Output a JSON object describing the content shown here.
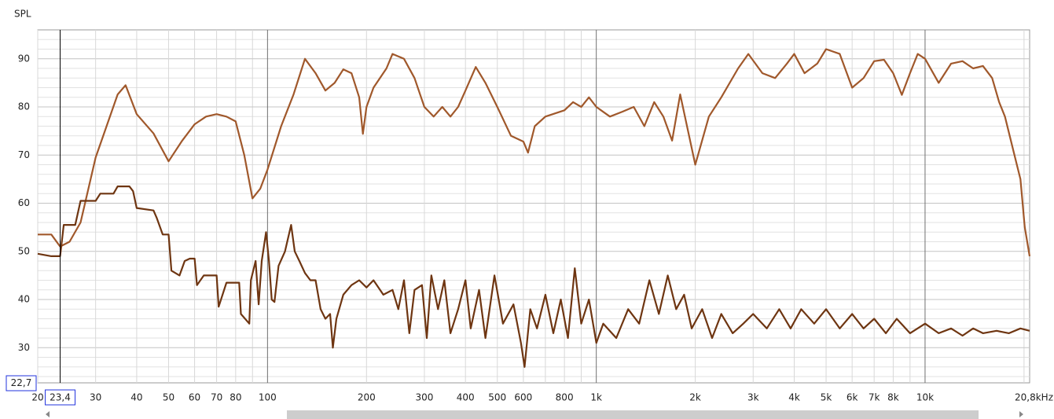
{
  "chart_data": {
    "type": "line",
    "y_axis_label": "SPL",
    "xscale": "log",
    "xlim": [
      20,
      20800
    ],
    "ylim": [
      22.7,
      96
    ],
    "xticks": [
      20,
      30,
      40,
      50,
      60,
      70,
      80,
      100,
      200,
      300,
      400,
      500,
      600,
      800,
      {
        "value": 1000,
        "label": "1k"
      },
      {
        "value": 2000,
        "label": "2k"
      },
      {
        "value": 3000,
        "label": "3k"
      },
      {
        "value": 4000,
        "label": "4k"
      },
      {
        "value": 5000,
        "label": "5k"
      },
      {
        "value": 6000,
        "label": "6k"
      },
      {
        "value": 7000,
        "label": "7k"
      },
      {
        "value": 8000,
        "label": "8k"
      },
      {
        "value": 10000,
        "label": "10k"
      },
      {
        "value": 20800,
        "label": "20,8kHz"
      }
    ],
    "xminorticks": [
      90,
      700,
      900,
      9000,
      20000
    ],
    "yticks": [
      30,
      40,
      50,
      60,
      70,
      80,
      90
    ],
    "yminorticks": [
      24,
      26,
      28,
      32,
      34,
      36,
      38,
      42,
      44,
      46,
      48,
      52,
      54,
      56,
      58,
      62,
      64,
      66,
      68,
      72,
      74,
      76,
      78,
      82,
      84,
      86,
      88,
      92,
      94
    ],
    "grid": true,
    "cursor": {
      "x": {
        "value": 23.4,
        "label": "23,4"
      },
      "y": {
        "value": 22.7,
        "label": "22,7"
      }
    },
    "series": [
      {
        "color": "#a0582b",
        "x": [
          20,
          22,
          23.4,
          25,
          27,
          30,
          35,
          37,
          40,
          45,
          50,
          55,
          60,
          65,
          70,
          75,
          80,
          85,
          90,
          95,
          100,
          110,
          120,
          130,
          140,
          150,
          160,
          170,
          180,
          190,
          195,
          200,
          210,
          230,
          240,
          260,
          280,
          300,
          320,
          340,
          360,
          380,
          400,
          430,
          460,
          500,
          550,
          600,
          620,
          650,
          700,
          800,
          850,
          900,
          950,
          1000,
          1100,
          1200,
          1300,
          1400,
          1500,
          1600,
          1700,
          1800,
          2000,
          2200,
          2400,
          2700,
          2900,
          3200,
          3500,
          3800,
          4000,
          4300,
          4700,
          5000,
          5500,
          6000,
          6500,
          7000,
          7500,
          8000,
          8500,
          9000,
          9500,
          10000,
          11000,
          12000,
          13000,
          14000,
          15000,
          16000,
          16800,
          17500,
          18700,
          19500,
          20100,
          20800
        ],
        "values": [
          53.5,
          53.5,
          51,
          52,
          56,
          69.5,
          82.6,
          84.5,
          78.5,
          74.5,
          68.7,
          73,
          76.4,
          78,
          78.5,
          78,
          77,
          70,
          61,
          63,
          67,
          76,
          82.6,
          90,
          87,
          83.4,
          85,
          87.8,
          87,
          82,
          74.4,
          80,
          84,
          88,
          91,
          90,
          86,
          80,
          78,
          80,
          78,
          80,
          83.4,
          88.3,
          85,
          80,
          74,
          72.8,
          70.5,
          76,
          78,
          79.3,
          81,
          80,
          82,
          80,
          78,
          79,
          80,
          76,
          81,
          78,
          73,
          82.6,
          68,
          78,
          82,
          88,
          91,
          87,
          86,
          89,
          91,
          87,
          89,
          92,
          91,
          84,
          86,
          89.5,
          89.8,
          87,
          82.5,
          87,
          91,
          90,
          85,
          89,
          89.5,
          88,
          88.5,
          86,
          81,
          78,
          70,
          65,
          55,
          49
        ]
      },
      {
        "color": "#6e3511",
        "x": [
          20,
          22,
          23.4,
          24,
          26,
          27,
          30,
          31,
          34,
          35,
          38,
          39,
          40,
          45,
          46,
          48,
          50,
          51,
          54,
          56,
          58,
          60,
          61,
          64,
          70,
          71,
          75,
          82,
          83,
          88,
          89,
          92,
          94,
          96,
          99,
          101,
          103,
          105,
          108,
          113,
          118,
          121,
          125,
          130,
          135,
          140,
          145,
          150,
          155,
          158,
          162,
          170,
          180,
          190,
          200,
          210,
          225,
          240,
          250,
          260,
          270,
          280,
          295,
          305,
          315,
          330,
          345,
          360,
          380,
          400,
          415,
          440,
          460,
          490,
          520,
          560,
          590,
          605,
          630,
          660,
          700,
          740,
          780,
          820,
          860,
          900,
          950,
          1000,
          1050,
          1150,
          1250,
          1350,
          1450,
          1550,
          1650,
          1750,
          1850,
          1950,
          2100,
          2250,
          2400,
          2600,
          2800,
          3000,
          3300,
          3600,
          3900,
          4200,
          4600,
          5000,
          5500,
          6000,
          6500,
          7000,
          7600,
          8200,
          9000,
          10000,
          11000,
          12000,
          13000,
          14000,
          15000,
          16500,
          18000,
          19500,
          20800
        ],
        "values": [
          49.5,
          49,
          49,
          55.5,
          55.5,
          60.5,
          60.5,
          62,
          62,
          63.5,
          63.5,
          62.5,
          59,
          58.5,
          57,
          53.5,
          53.5,
          46,
          45,
          48,
          48.5,
          48.5,
          43,
          45,
          45,
          38.5,
          43.5,
          43.5,
          37,
          35,
          44,
          48,
          39,
          48,
          54,
          48,
          40,
          39.5,
          47,
          50,
          55.5,
          50,
          48,
          45.5,
          44,
          44,
          38,
          36,
          37,
          30,
          36,
          41,
          43,
          44,
          42.5,
          44,
          41,
          42,
          38,
          44,
          33,
          42,
          43,
          32,
          45,
          38,
          44,
          33,
          38,
          44,
          34,
          42,
          32,
          45,
          35,
          39,
          31,
          26,
          38,
          34,
          41,
          33,
          40,
          32,
          46.5,
          35,
          40,
          31,
          35,
          32,
          38,
          35,
          44,
          37,
          45,
          38,
          41,
          34,
          38,
          32,
          37,
          33,
          35,
          37,
          34,
          38,
          34,
          38,
          35,
          38,
          34,
          37,
          34,
          36,
          33,
          36,
          33,
          35,
          33,
          34,
          32.5,
          34,
          33,
          33.5,
          33,
          34,
          33.5
        ]
      }
    ]
  }
}
